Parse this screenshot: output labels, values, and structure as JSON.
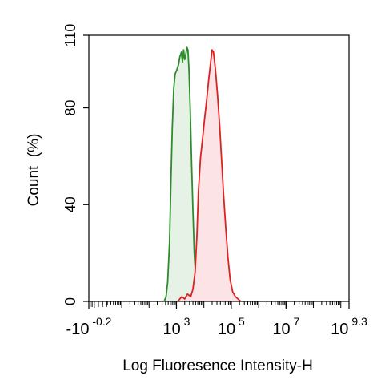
{
  "chart_data": {
    "type": "area",
    "xlabel": "Log Fluoresence Intensity-H",
    "ylabel": "Count  (%)",
    "x_scale": "log",
    "xlim": [
      -0.2,
      9.3
    ],
    "ylim": [
      0,
      110
    ],
    "grid": false,
    "y_ticks": [
      {
        "value": 0,
        "label": "0"
      },
      {
        "value": 40,
        "label": "40"
      },
      {
        "value": 80,
        "label": "80"
      },
      {
        "value": 110,
        "label": "110"
      }
    ],
    "x_ticks": [
      {
        "value": -0.2,
        "base": "-10",
        "exp": "-0.2"
      },
      {
        "value": 3,
        "base": "10",
        "exp": "3"
      },
      {
        "value": 5,
        "base": "10",
        "exp": "5"
      },
      {
        "value": 7,
        "base": "10",
        "exp": "7"
      },
      {
        "value": 9.3,
        "base": "10",
        "exp": "9.3"
      }
    ],
    "series": [
      {
        "color": "#2e8b2e",
        "fill": "#e6f2e6",
        "points": [
          [
            2.55,
            0
          ],
          [
            2.62,
            2
          ],
          [
            2.68,
            8
          ],
          [
            2.75,
            25
          ],
          [
            2.8,
            50
          ],
          [
            2.85,
            72
          ],
          [
            2.9,
            88
          ],
          [
            2.95,
            94
          ],
          [
            3.02,
            96
          ],
          [
            3.08,
            98
          ],
          [
            3.12,
            101
          ],
          [
            3.18,
            103
          ],
          [
            3.22,
            99
          ],
          [
            3.26,
            104
          ],
          [
            3.3,
            100
          ],
          [
            3.34,
            102
          ],
          [
            3.38,
            105
          ],
          [
            3.42,
            104
          ],
          [
            3.46,
            95
          ],
          [
            3.5,
            80
          ],
          [
            3.55,
            58
          ],
          [
            3.6,
            38
          ],
          [
            3.65,
            20
          ],
          [
            3.72,
            7
          ],
          [
            3.8,
            2
          ],
          [
            3.9,
            0
          ]
        ]
      },
      {
        "color": "#dd2222",
        "fill": "#fbe3e6",
        "points": [
          [
            3.05,
            0
          ],
          [
            3.12,
            1
          ],
          [
            3.2,
            2
          ],
          [
            3.3,
            1
          ],
          [
            3.4,
            3
          ],
          [
            3.52,
            2
          ],
          [
            3.6,
            5
          ],
          [
            3.68,
            12
          ],
          [
            3.75,
            28
          ],
          [
            3.8,
            45
          ],
          [
            3.88,
            60
          ],
          [
            3.95,
            67
          ],
          [
            4.02,
            75
          ],
          [
            4.1,
            83
          ],
          [
            4.18,
            92
          ],
          [
            4.25,
            99
          ],
          [
            4.3,
            104
          ],
          [
            4.35,
            103
          ],
          [
            4.42,
            96
          ],
          [
            4.5,
            85
          ],
          [
            4.58,
            72
          ],
          [
            4.65,
            58
          ],
          [
            4.72,
            44
          ],
          [
            4.8,
            30
          ],
          [
            4.88,
            18
          ],
          [
            4.96,
            9
          ],
          [
            5.05,
            4
          ],
          [
            5.15,
            2
          ],
          [
            5.25,
            1
          ],
          [
            5.35,
            0
          ]
        ]
      }
    ]
  }
}
